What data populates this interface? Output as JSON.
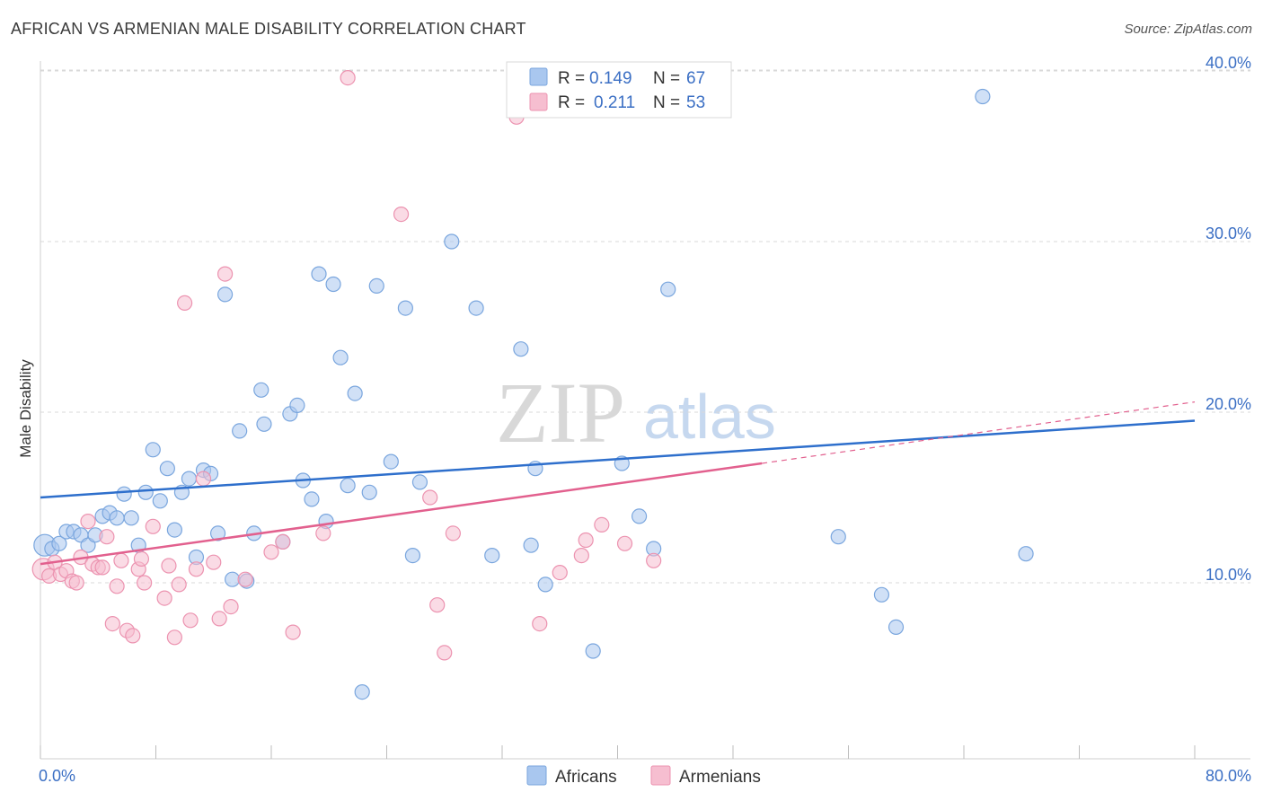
{
  "title": "AFRICAN VS ARMENIAN MALE DISABILITY CORRELATION CHART",
  "source": "Source: ZipAtlas.com",
  "watermark": {
    "zip": "ZIP",
    "atlas": "atlas"
  },
  "legend": {
    "rows": [
      {
        "r_label": "R =",
        "r_value": "0.149",
        "n_label": "N =",
        "n_value": "67"
      },
      {
        "r_label": "R =",
        "r_value": "0.211",
        "n_label": "N =",
        "n_value": "53"
      }
    ]
  },
  "bottom_legend": [
    "Africans",
    "Armenians"
  ],
  "colors": {
    "africans_fill": "#a9c7ef",
    "africans_stroke": "#7aa6de",
    "africans_line": "#2e6fcc",
    "armenians_fill": "#f6bed0",
    "armenians_stroke": "#ec93b0",
    "armenians_line": "#e2608e",
    "axis_label": "#3b6fc4",
    "grid": "#d9d9d9"
  },
  "chart_data": {
    "type": "scatter",
    "title": "AFRICAN VS ARMENIAN MALE DISABILITY CORRELATION CHART",
    "xlabel": "",
    "ylabel": "Male Disability",
    "xlim": [
      0,
      80
    ],
    "ylim": [
      1,
      41
    ],
    "x_ticks": [
      "0.0%",
      "80.0%"
    ],
    "y_ticks": [
      {
        "value": 10,
        "label": "10.0%"
      },
      {
        "value": 20,
        "label": "20.0%"
      },
      {
        "value": 30,
        "label": "30.0%"
      },
      {
        "value": 40,
        "label": "40.0%"
      }
    ],
    "grid": true,
    "legend_position": "top-center",
    "series": [
      {
        "name": "Africans",
        "r": 0.149,
        "n": 67,
        "trend": {
          "x": [
            0,
            80
          ],
          "y": [
            15.0,
            19.5
          ],
          "style": "solid"
        },
        "points": [
          [
            0.3,
            12.2
          ],
          [
            0.8,
            12.0
          ],
          [
            1.3,
            12.3
          ],
          [
            1.8,
            13.0
          ],
          [
            2.3,
            13.0
          ],
          [
            2.8,
            12.8
          ],
          [
            3.3,
            12.2
          ],
          [
            3.8,
            12.8
          ],
          [
            4.3,
            13.9
          ],
          [
            4.8,
            14.1
          ],
          [
            5.3,
            13.8
          ],
          [
            5.8,
            15.2
          ],
          [
            6.3,
            13.8
          ],
          [
            6.8,
            12.2
          ],
          [
            7.3,
            15.3
          ],
          [
            7.8,
            17.8
          ],
          [
            8.3,
            14.8
          ],
          [
            8.8,
            16.7
          ],
          [
            9.3,
            13.1
          ],
          [
            9.8,
            15.3
          ],
          [
            10.3,
            16.1
          ],
          [
            10.8,
            11.5
          ],
          [
            11.3,
            16.6
          ],
          [
            11.8,
            16.4
          ],
          [
            12.3,
            12.9
          ],
          [
            12.8,
            26.9
          ],
          [
            13.3,
            10.2
          ],
          [
            13.8,
            18.9
          ],
          [
            14.3,
            10.1
          ],
          [
            14.8,
            12.9
          ],
          [
            15.3,
            21.3
          ],
          [
            15.5,
            19.3
          ],
          [
            16.8,
            12.4
          ],
          [
            17.3,
            19.9
          ],
          [
            17.8,
            20.4
          ],
          [
            18.2,
            16.0
          ],
          [
            18.8,
            14.9
          ],
          [
            19.3,
            28.1
          ],
          [
            19.8,
            13.6
          ],
          [
            20.3,
            27.5
          ],
          [
            20.8,
            23.2
          ],
          [
            21.3,
            15.7
          ],
          [
            21.8,
            21.1
          ],
          [
            22.3,
            3.6
          ],
          [
            22.8,
            15.3
          ],
          [
            23.3,
            27.4
          ],
          [
            24.3,
            17.1
          ],
          [
            25.3,
            26.1
          ],
          [
            25.8,
            11.6
          ],
          [
            26.3,
            15.9
          ],
          [
            28.5,
            30.0
          ],
          [
            30.2,
            26.1
          ],
          [
            31.3,
            11.6
          ],
          [
            33.3,
            23.7
          ],
          [
            34.0,
            12.2
          ],
          [
            34.3,
            16.7
          ],
          [
            35.0,
            9.9
          ],
          [
            38.3,
            6.0
          ],
          [
            40.3,
            17.0
          ],
          [
            41.5,
            13.9
          ],
          [
            42.5,
            12.0
          ],
          [
            43.5,
            27.2
          ],
          [
            55.3,
            12.7
          ],
          [
            58.3,
            9.3
          ],
          [
            59.3,
            7.4
          ],
          [
            65.3,
            38.5
          ],
          [
            68.3,
            11.7
          ]
        ]
      },
      {
        "name": "Armenians",
        "r": 0.211,
        "n": 53,
        "trend": {
          "x": [
            0,
            50
          ],
          "y": [
            11.1,
            17.0
          ],
          "style": "solid",
          "dashed_extension_to": [
            80,
            20.6
          ]
        },
        "points": [
          [
            0.2,
            10.8
          ],
          [
            0.6,
            10.4
          ],
          [
            1.0,
            11.2
          ],
          [
            1.4,
            10.5
          ],
          [
            1.8,
            10.7
          ],
          [
            2.2,
            10.1
          ],
          [
            2.5,
            10.0
          ],
          [
            2.8,
            11.5
          ],
          [
            3.3,
            13.6
          ],
          [
            3.6,
            11.1
          ],
          [
            4.0,
            10.9
          ],
          [
            4.3,
            10.9
          ],
          [
            4.6,
            12.7
          ],
          [
            5.0,
            7.6
          ],
          [
            5.3,
            9.8
          ],
          [
            5.6,
            11.3
          ],
          [
            6.0,
            7.2
          ],
          [
            6.4,
            6.9
          ],
          [
            6.8,
            10.8
          ],
          [
            7.0,
            11.4
          ],
          [
            7.2,
            10.0
          ],
          [
            7.8,
            13.3
          ],
          [
            8.6,
            9.1
          ],
          [
            8.9,
            11.0
          ],
          [
            9.3,
            6.8
          ],
          [
            9.6,
            9.9
          ],
          [
            10.0,
            26.4
          ],
          [
            10.4,
            7.8
          ],
          [
            10.8,
            10.8
          ],
          [
            11.3,
            16.1
          ],
          [
            12.0,
            11.2
          ],
          [
            12.4,
            7.9
          ],
          [
            12.8,
            28.1
          ],
          [
            13.2,
            8.6
          ],
          [
            14.2,
            10.2
          ],
          [
            16.0,
            11.8
          ],
          [
            16.8,
            12.4
          ],
          [
            17.5,
            7.1
          ],
          [
            19.6,
            12.9
          ],
          [
            21.3,
            39.6
          ],
          [
            25.0,
            31.6
          ],
          [
            27.0,
            15.0
          ],
          [
            27.5,
            8.7
          ],
          [
            28.0,
            5.9
          ],
          [
            28.6,
            12.9
          ],
          [
            33.0,
            37.3
          ],
          [
            34.6,
            7.6
          ],
          [
            36.0,
            10.6
          ],
          [
            37.5,
            11.6
          ],
          [
            37.8,
            12.5
          ],
          [
            38.9,
            13.4
          ],
          [
            40.5,
            12.3
          ],
          [
            42.5,
            11.3
          ]
        ]
      }
    ]
  }
}
